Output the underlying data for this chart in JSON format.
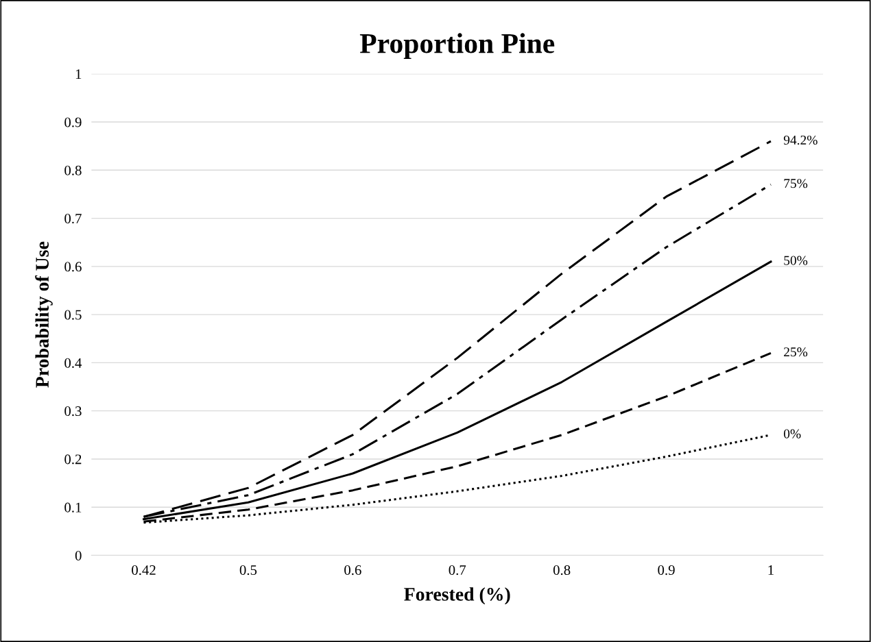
{
  "chart_data": {
    "type": "line",
    "title": "Proportion Pine",
    "xlabel": "Forested (%)",
    "ylabel": "Probability of Use",
    "categories": [
      "0.42",
      "0.5",
      "0.6",
      "0.7",
      "0.8",
      "0.9",
      "1"
    ],
    "series": [
      {
        "name": "94.2%",
        "color": "#000000",
        "line_style": "longdash",
        "values": [
          0.08,
          0.14,
          0.25,
          0.41,
          0.585,
          0.745,
          0.86
        ]
      },
      {
        "name": "75%",
        "color": "#000000",
        "line_style": "dashdot",
        "values": [
          0.08,
          0.125,
          0.21,
          0.335,
          0.49,
          0.64,
          0.77
        ]
      },
      {
        "name": "50%",
        "color": "#000000",
        "line_style": "solid",
        "values": [
          0.075,
          0.11,
          0.17,
          0.255,
          0.36,
          0.485,
          0.61
        ]
      },
      {
        "name": "25%",
        "color": "#000000",
        "line_style": "dashed",
        "values": [
          0.07,
          0.095,
          0.135,
          0.185,
          0.25,
          0.33,
          0.42
        ]
      },
      {
        "name": "0%",
        "color": "#000000",
        "line_style": "dotted",
        "values": [
          0.068,
          0.083,
          0.105,
          0.133,
          0.165,
          0.205,
          0.25
        ]
      }
    ],
    "ylim": [
      0,
      1
    ],
    "yticks": [
      0,
      0.1,
      0.2,
      0.3,
      0.4,
      0.5,
      0.6,
      0.7,
      0.8,
      0.9,
      1
    ],
    "grid": "y",
    "legend": false,
    "marker": "none"
  }
}
